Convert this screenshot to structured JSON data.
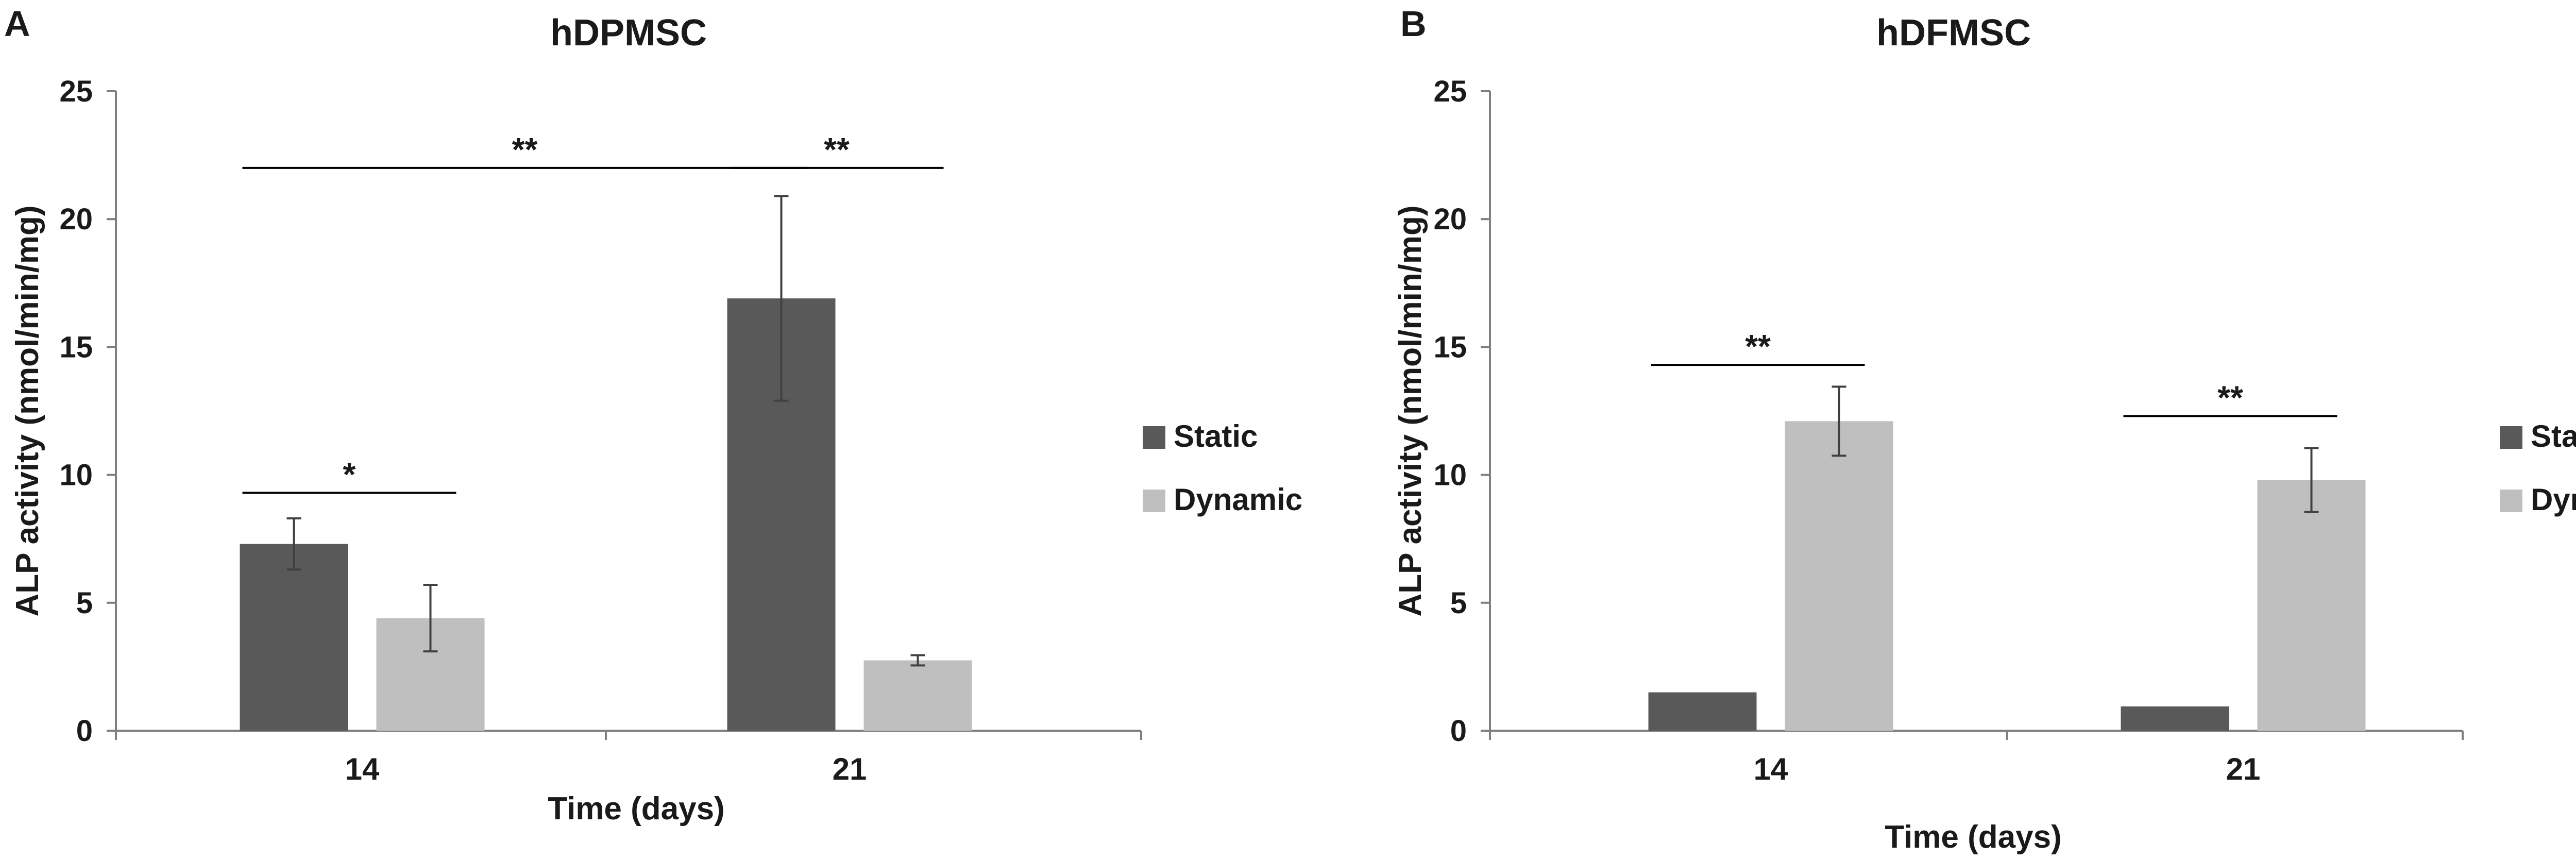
{
  "colors": {
    "static": "#595959",
    "dynamic": "#bfbfbf",
    "axis": "#7f7f7f",
    "text": "#1a1a1a",
    "annotation": "#000000"
  },
  "chart_data": [
    {
      "panel_label": "A",
      "type": "bar",
      "title": "hDPMSC",
      "xlabel": "Time (days)",
      "ylabel": "ALP activity (nmol/min/mg)",
      "ylim": [
        0,
        25
      ],
      "yticks": [
        "0",
        "5",
        "10",
        "15",
        "20",
        "25"
      ],
      "grid": false,
      "legend_position": "right",
      "categories": [
        "14",
        "21"
      ],
      "series": [
        {
          "name": "Static",
          "values": [
            7.3,
            16.9
          ],
          "errors": [
            1.0,
            4.0
          ]
        },
        {
          "name": "Dynamic",
          "values": [
            4.4,
            2.75
          ],
          "errors": [
            1.3,
            0.2
          ]
        }
      ],
      "annotations": [
        {
          "text": "*",
          "from": [
            0,
            0
          ],
          "to": [
            0,
            1
          ],
          "y": 9.3
        },
        {
          "text": "**",
          "from": [
            0,
            0
          ],
          "to": [
            1,
            0
          ],
          "y": 22
        },
        {
          "text": "**",
          "from": [
            1,
            0
          ],
          "to": [
            1,
            1
          ],
          "y": 22
        }
      ]
    },
    {
      "panel_label": "B",
      "type": "bar",
      "title": "hDFMSC",
      "xlabel": "Time (days)",
      "ylabel": "ALP activity (nmol/min/mg)",
      "ylim": [
        0,
        25
      ],
      "yticks": [
        "0",
        "5",
        "10",
        "15",
        "20",
        "25"
      ],
      "grid": false,
      "legend_position": "right",
      "categories": [
        "14",
        "21"
      ],
      "series": [
        {
          "name": "Static",
          "values": [
            1.5,
            0.95
          ],
          "errors": [
            0,
            0
          ]
        },
        {
          "name": "Dynamic",
          "values": [
            12.1,
            9.8
          ],
          "errors": [
            1.35,
            1.25
          ]
        }
      ],
      "annotations": [
        {
          "text": "**",
          "from": [
            0,
            0
          ],
          "to": [
            0,
            1
          ],
          "y": 14.3
        },
        {
          "text": "**",
          "from": [
            1,
            0
          ],
          "to": [
            1,
            1
          ],
          "y": 12.3
        }
      ]
    }
  ]
}
